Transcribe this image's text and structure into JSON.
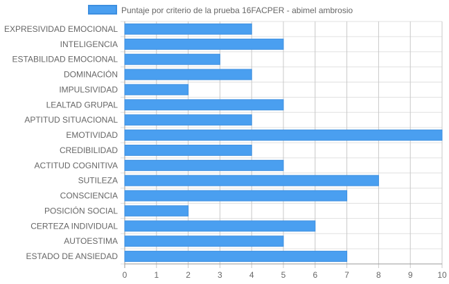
{
  "chart_data": {
    "type": "bar",
    "orientation": "horizontal",
    "categories": [
      "EXPRESIVIDAD EMOCIONAL",
      "INTELIGENCIA",
      "ESTABILIDAD EMOCIONAL",
      "DOMINACIÓN",
      "IMPULSIVIDAD",
      "LEALTAD GRUPAL",
      "APTITUD SITUACIONAL",
      "EMOTIVIDAD",
      "CREDIBILIDAD",
      "ACTITUD COGNITIVA",
      "SUTILEZA",
      "CONSCIENCIA",
      "POSICIÓN SOCIAL",
      "CERTEZA INDIVIDUAL",
      "AUTOESTIMA",
      "ESTADO DE ANSIEDAD"
    ],
    "series": [
      {
        "name": "Puntaje por criterio de la prueba 16FACPER - abimel ambrosio",
        "values": [
          4,
          5,
          3,
          4,
          2,
          5,
          4,
          10,
          4,
          5,
          8,
          7,
          2,
          6,
          5,
          7
        ]
      }
    ],
    "xlim": [
      0,
      10
    ],
    "x_ticks": [
      "0",
      "1",
      "2",
      "3",
      "4",
      "5",
      "6",
      "7",
      "8",
      "9",
      "10"
    ],
    "grid": true,
    "legend_position": "top",
    "colors": {
      "bar_fill": "#4a9ff0",
      "bar_stroke": "#3d8fe0",
      "grid": "#e0e0e0",
      "grid_vertical": "#c8c8c8",
      "axis": "#999999",
      "text": "#666666"
    }
  }
}
